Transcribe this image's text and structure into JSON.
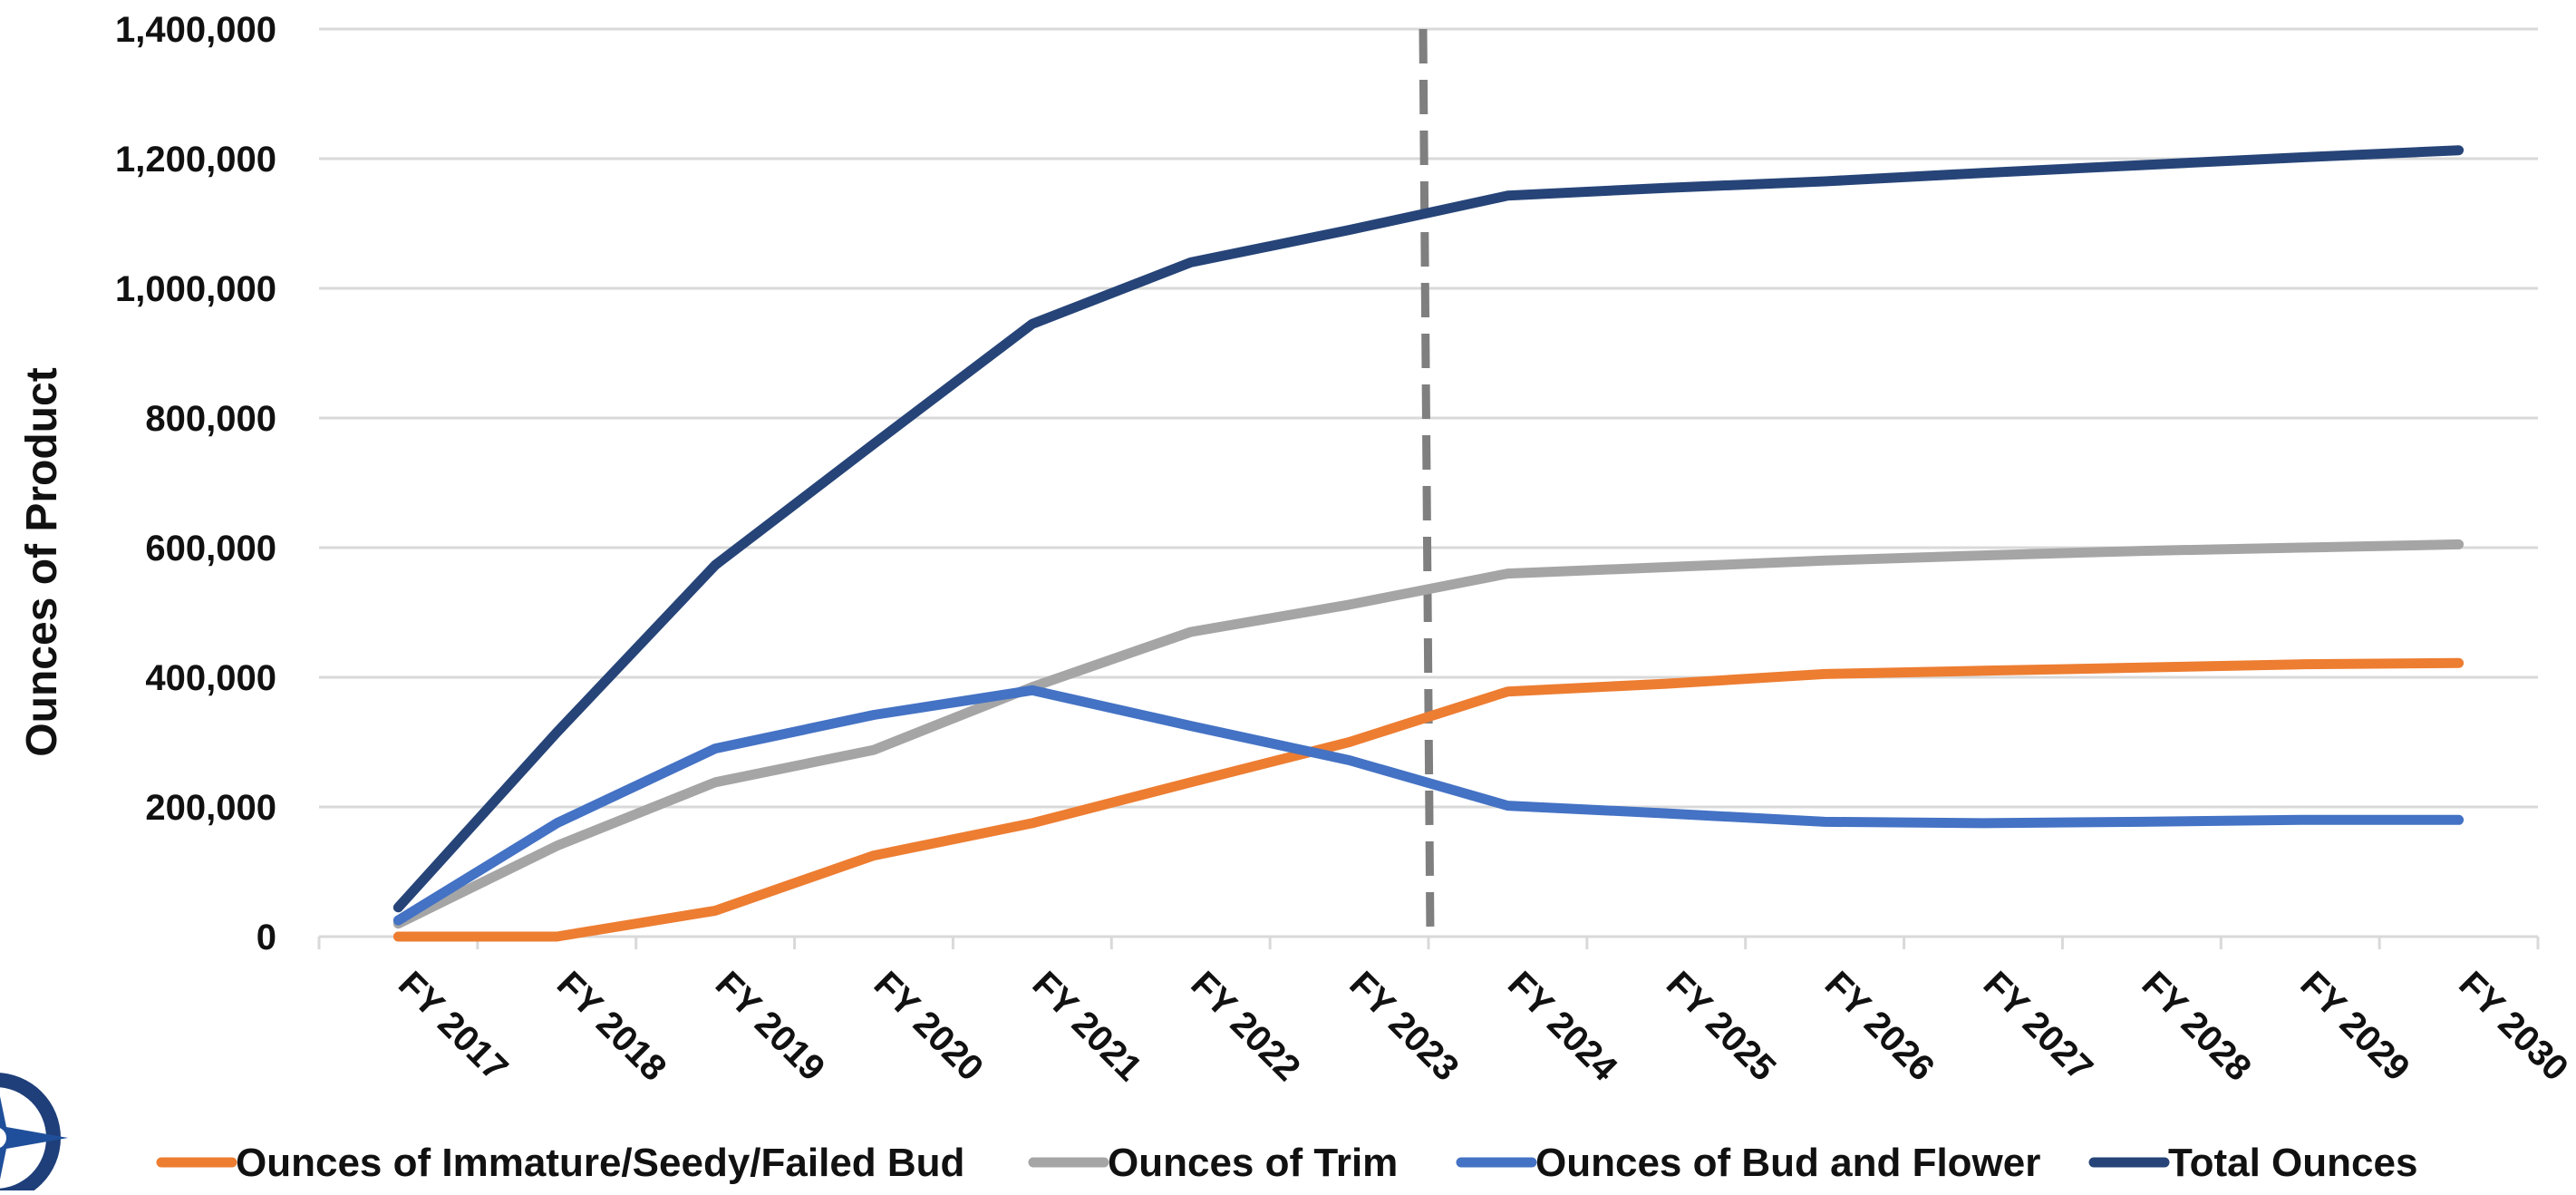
{
  "chart_data": {
    "type": "line",
    "ylabel": "Ounces of Product",
    "ylim": [
      0,
      1400000
    ],
    "yticks": [
      "0",
      "200,000",
      "400,000",
      "600,000",
      "800,000",
      "1,000,000",
      "1,200,000",
      "1,400,000"
    ],
    "ytick_values": [
      0,
      200000,
      400000,
      600000,
      800000,
      1000000,
      1200000,
      1400000
    ],
    "categories": [
      "FY 2017",
      "FY 2018",
      "FY 2019",
      "FY 2020",
      "FY 2021",
      "FY 2022",
      "FY 2023",
      "FY 2024",
      "FY 2025",
      "FY 2026",
      "FY 2027",
      "FY 2028",
      "FY 2029",
      "FY 2030"
    ],
    "grid": true,
    "legend_position": "bottom",
    "divider_after_category": "FY 2023",
    "series": [
      {
        "name": "Ounces of Immature/Seedy/Failed Bud",
        "color": "#ED7D31",
        "values": [
          0,
          0,
          40000,
          125000,
          175000,
          238000,
          300000,
          378000,
          390000,
          405000,
          410000,
          415000,
          420000,
          422000
        ]
      },
      {
        "name": "Ounces of Trim",
        "color": "#A5A5A5",
        "values": [
          20000,
          140000,
          238000,
          288000,
          385000,
          470000,
          512000,
          560000,
          570000,
          580000,
          588000,
          595000,
          600000,
          605000
        ]
      },
      {
        "name": "Ounces of Bud and Flower",
        "color": "#4472C4",
        "values": [
          25000,
          175000,
          290000,
          342000,
          380000,
          325000,
          272000,
          202000,
          190000,
          177000,
          175000,
          177000,
          180000,
          180000
        ]
      },
      {
        "name": "Total Ounces",
        "color": "#264478",
        "values": [
          45000,
          315000,
          573000,
          760000,
          945000,
          1040000,
          1090000,
          1143000,
          1155000,
          1165000,
          1178000,
          1190000,
          1202000,
          1213000
        ]
      }
    ]
  }
}
